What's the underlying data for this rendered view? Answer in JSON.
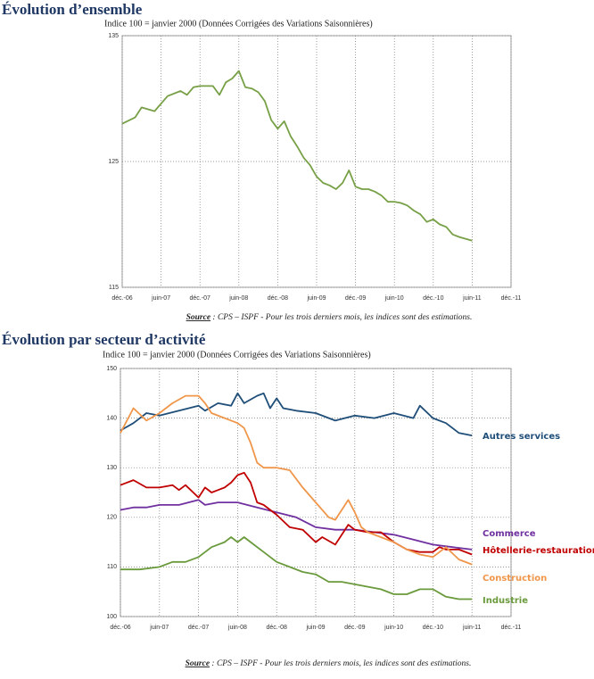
{
  "chart_data": [
    {
      "type": "line",
      "title": "Évolution d’ensemble",
      "subtitle": "Indice 100 = janvier 2000 (Données Corrigées des Variations Saisonnières)",
      "source_label": "Source",
      "source": " : CPS – ISPF - Pour les trois derniers mois, les indices sont des estimations.",
      "xlim": [
        0,
        60
      ],
      "xticks": [
        {
          "value": 0,
          "label": "déc.-06"
        },
        {
          "value": 6,
          "label": "juin-07"
        },
        {
          "value": 12,
          "label": "déc.-07"
        },
        {
          "value": 18,
          "label": "juin-08"
        },
        {
          "value": 24,
          "label": "déc.-08"
        },
        {
          "value": 30,
          "label": "juin-09"
        },
        {
          "value": 36,
          "label": "déc.-09"
        },
        {
          "value": 42,
          "label": "juin-10"
        },
        {
          "value": 48,
          "label": "déc.-10"
        },
        {
          "value": 54,
          "label": "juin-11"
        },
        {
          "value": 60,
          "label": "déc.-11"
        }
      ],
      "ylim": [
        115,
        135
      ],
      "yticks": [
        115,
        125,
        135
      ],
      "grid": true,
      "color": "#77a046",
      "x": [
        0,
        2,
        3,
        5,
        7,
        9,
        10,
        11,
        12,
        14,
        15,
        16,
        17,
        18,
        19,
        20,
        21,
        22,
        23,
        24,
        25,
        26,
        27,
        28,
        29,
        30,
        31,
        32,
        33,
        34,
        35,
        36,
        37,
        38,
        39,
        40,
        41,
        42,
        43,
        44,
        45,
        46,
        47,
        48,
        49,
        50,
        51,
        52,
        54
      ],
      "values": [
        128.0,
        128.5,
        129.3,
        129.0,
        130.2,
        130.6,
        130.3,
        130.9,
        131.0,
        131.0,
        130.3,
        131.3,
        131.6,
        132.2,
        130.9,
        130.8,
        130.5,
        129.8,
        128.3,
        127.6,
        128.2,
        127.0,
        126.2,
        125.3,
        124.7,
        123.8,
        123.3,
        123.1,
        122.8,
        123.3,
        124.3,
        123.0,
        122.8,
        122.8,
        122.6,
        122.3,
        121.8,
        121.8,
        121.7,
        121.5,
        121.1,
        120.8,
        120.2,
        120.4,
        120.0,
        119.8,
        119.2,
        119.0,
        118.7
      ]
    },
    {
      "type": "line",
      "title": "Évolution par secteur d’activité",
      "subtitle": "Indice 100 = janvier 2000 (Données Corrigées des Variations Saisonnières)",
      "source_label": "Source",
      "source": " : CPS – ISPF -  Pour les trois derniers mois, les indices sont des estimations.",
      "xlim": [
        0,
        60
      ],
      "xticks": [
        {
          "value": 0,
          "label": "déc.-06"
        },
        {
          "value": 6,
          "label": "juin-07"
        },
        {
          "value": 12,
          "label": "déc.-07"
        },
        {
          "value": 18,
          "label": "juin-08"
        },
        {
          "value": 24,
          "label": "déc.-08"
        },
        {
          "value": 30,
          "label": "juin-09"
        },
        {
          "value": 36,
          "label": "déc.-09"
        },
        {
          "value": 42,
          "label": "juin-10"
        },
        {
          "value": 48,
          "label": "déc.-10"
        },
        {
          "value": 54,
          "label": "juin-11"
        },
        {
          "value": 60,
          "label": "déc.-11"
        }
      ],
      "ylim": [
        100,
        150
      ],
      "yticks": [
        100,
        110,
        120,
        130,
        140,
        150
      ],
      "grid": true,
      "series": [
        {
          "name": "Autres services",
          "color": "#1f4e79",
          "x": [
            0,
            2,
            4,
            6,
            9,
            12,
            13,
            15,
            17,
            18,
            19,
            21,
            22,
            23,
            24,
            25,
            27,
            30,
            33,
            36,
            39,
            42,
            45,
            46,
            48,
            50,
            52,
            54
          ],
          "values": [
            137.5,
            139,
            141,
            140.5,
            141.5,
            142.5,
            141.5,
            143,
            142.5,
            145,
            143,
            144.5,
            145,
            142,
            144,
            142,
            141.5,
            141,
            139.5,
            140.5,
            140,
            141,
            140,
            142.5,
            140,
            139,
            137,
            136.5
          ]
        },
        {
          "name": "Commerce",
          "color": "#7030a0",
          "x": [
            0,
            2,
            4,
            6,
            9,
            12,
            13,
            15,
            18,
            21,
            24,
            27,
            30,
            33,
            36,
            39,
            42,
            45,
            48,
            51,
            54
          ],
          "values": [
            121.5,
            122,
            122,
            122.5,
            122.5,
            123.5,
            122.5,
            123,
            123,
            122,
            121,
            120,
            118,
            117.5,
            117.5,
            117,
            116.5,
            115.5,
            114.5,
            114,
            113.5
          ]
        },
        {
          "name": "Hôtellerie-restauration",
          "color": "#c00000",
          "x": [
            0,
            2,
            4,
            6,
            8,
            9,
            10,
            12,
            13,
            14,
            15,
            16,
            17,
            18,
            19,
            20,
            21,
            22,
            24,
            26,
            28,
            30,
            31,
            33,
            35,
            36,
            38,
            40,
            42,
            44,
            46,
            48,
            49,
            50,
            52,
            54
          ],
          "values": [
            126.5,
            127.5,
            126,
            126,
            126.5,
            125.5,
            126.5,
            124,
            126,
            125,
            125.5,
            126,
            127,
            128.5,
            129,
            127,
            123,
            122.5,
            120.5,
            118,
            117.5,
            115,
            116,
            114.5,
            118.5,
            117.5,
            117,
            117,
            115,
            113.5,
            113,
            113,
            114,
            113.5,
            113.5,
            112.5
          ]
        },
        {
          "name": "Construction",
          "color": "#f0964a",
          "x": [
            0,
            2,
            4,
            6,
            8,
            10,
            12,
            13,
            14,
            16,
            18,
            19,
            20,
            21,
            22,
            24,
            26,
            28,
            30,
            32,
            33,
            34,
            35,
            36,
            37,
            38,
            40,
            42,
            44,
            46,
            48,
            50,
            52,
            54
          ],
          "values": [
            137,
            142,
            139.5,
            141,
            143,
            144.5,
            144.5,
            143,
            141,
            140,
            139,
            138,
            135,
            131,
            130,
            130,
            129.5,
            126,
            123,
            120,
            119.5,
            121.5,
            123.5,
            121,
            118,
            117,
            116,
            115,
            113.5,
            112.5,
            112,
            114,
            111.5,
            110.5
          ]
        },
        {
          "name": "Industrie",
          "color": "#6a9a3c",
          "x": [
            0,
            3,
            6,
            8,
            10,
            12,
            14,
            16,
            17,
            18,
            19,
            20,
            22,
            24,
            26,
            28,
            30,
            32,
            34,
            36,
            38,
            40,
            42,
            44,
            46,
            48,
            50,
            52,
            54
          ],
          "values": [
            109.5,
            109.5,
            110,
            111,
            111,
            112,
            114,
            115,
            116,
            115,
            116,
            115,
            113,
            111,
            110,
            109,
            108.5,
            107,
            107,
            106.5,
            106,
            105.5,
            104.5,
            104.5,
            105.5,
            105.5,
            104,
            103.5,
            103.5
          ]
        }
      ]
    }
  ]
}
